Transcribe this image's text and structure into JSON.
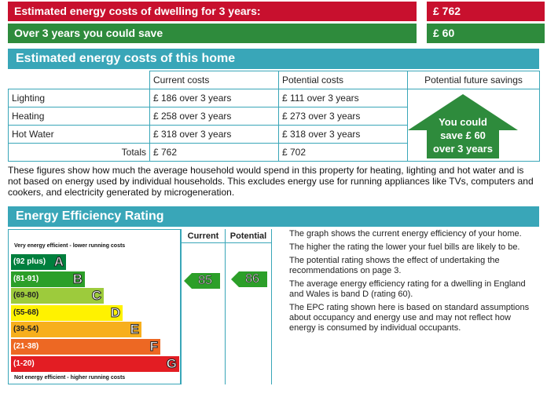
{
  "summary": {
    "estimated_label": "Estimated energy costs of dwelling for 3 years:",
    "estimated_value": "£ 762",
    "save_label": "Over 3 years you could save",
    "save_value": "£ 60",
    "colors": {
      "red": "#c8102e",
      "green": "#2e8b3c",
      "teal": "#39a6b8"
    }
  },
  "costs": {
    "title": "Estimated energy costs of this home",
    "headers": [
      "",
      "Current costs",
      "Potential costs",
      "Potential future savings"
    ],
    "rows": [
      {
        "label": "Lighting",
        "current": "£ 186 over 3 years",
        "potential": "£ 111 over 3 years"
      },
      {
        "label": "Heating",
        "current": "£ 258 over 3 years",
        "potential": "£ 273 over 3 years"
      },
      {
        "label": "Hot Water",
        "current": "£ 318 over 3 years",
        "potential": "£ 318 over 3 years"
      }
    ],
    "totals": {
      "label": "Totals",
      "current": "£ 762",
      "potential": "£ 702"
    },
    "savings_arrow": {
      "line1": "You could",
      "line2": "save £ 60",
      "line3": "over 3 years"
    }
  },
  "note": "These figures show how much the average household would spend in this property for heating, lighting and hot water and is not based on energy used by individual households. This excludes energy use for running appliances like TVs, computers and cookers, and electricity generated by microgeneration.",
  "eer": {
    "title": "Energy Efficiency Rating",
    "col_current": "Current",
    "col_potential": "Potential",
    "top_caption": "Very energy efficient - lower running costs",
    "bottom_caption": "Not energy efficient - higher running costs",
    "bands": [
      {
        "range": "(92 plus)",
        "letter": "A",
        "color": "#007f3d"
      },
      {
        "range": "(81-91)",
        "letter": "B",
        "color": "#2c9f29"
      },
      {
        "range": "(69-80)",
        "letter": "C",
        "color": "#9dcb3c"
      },
      {
        "range": "(55-68)",
        "letter": "D",
        "color": "#fff200"
      },
      {
        "range": "(39-54)",
        "letter": "E",
        "color": "#f7af1d"
      },
      {
        "range": "(21-38)",
        "letter": "F",
        "color": "#ed6823"
      },
      {
        "range": "(1-20)",
        "letter": "G",
        "color": "#e31d23"
      }
    ],
    "current_rating": "85",
    "potential_rating": "86",
    "arrow_color": "#2c9f29",
    "paragraphs": [
      "The graph shows the current energy efficiency of your home.",
      "The higher the rating the lower your fuel bills are likely to be.",
      "The potential rating shows the effect of undertaking the recommendations on page 3.",
      "The average energy efficiency rating for a dwelling in England and Wales is band D (rating 60).",
      "The EPC rating shown here is based on standard assumptions about occupancy and energy use and may not reflect how energy is consumed by individual occupants."
    ]
  }
}
